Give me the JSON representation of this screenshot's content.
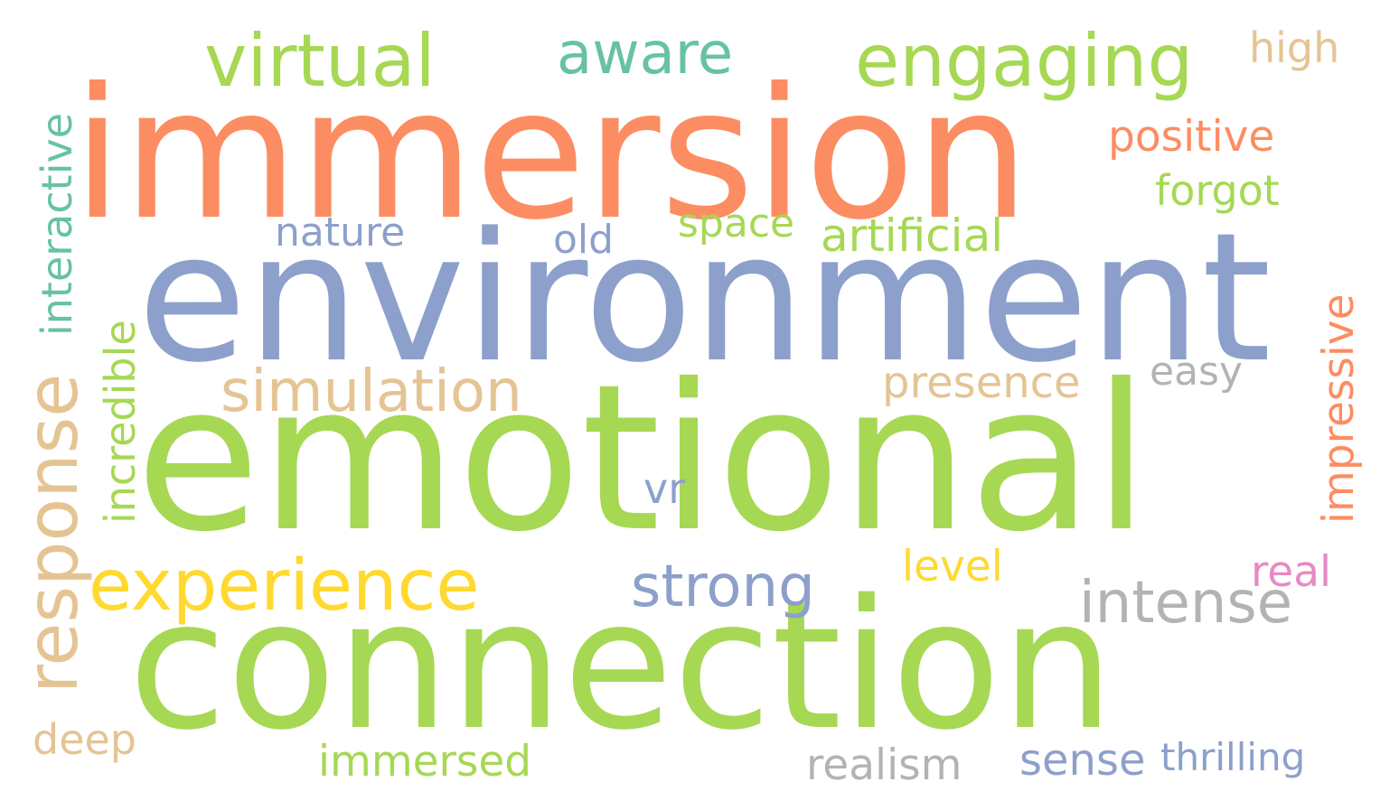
{
  "words": [
    {
      "text": "immersion",
      "color": "#fc8d62"
    },
    {
      "text": "environment",
      "color": "#8da0cb"
    },
    {
      "text": "emotional",
      "color": "#a6d854"
    },
    {
      "text": "connection",
      "color": "#a6d854"
    },
    {
      "text": "response",
      "color": "#e5c494"
    },
    {
      "text": "experience",
      "color": "#ffd92f"
    },
    {
      "text": "virtual",
      "color": "#a6d854"
    },
    {
      "text": "engaging",
      "color": "#a6d854"
    },
    {
      "text": "aware",
      "color": "#66c2a5"
    },
    {
      "text": "simulation",
      "color": "#e5c494"
    },
    {
      "text": "strong",
      "color": "#8da0cb"
    },
    {
      "text": "intense",
      "color": "#b3b3b3"
    },
    {
      "text": "interactive",
      "color": "#66c2a5"
    },
    {
      "text": "incredible",
      "color": "#a6d854"
    },
    {
      "text": "impressive",
      "color": "#fc8d62"
    },
    {
      "text": "high",
      "color": "#e5c494"
    },
    {
      "text": "positive",
      "color": "#fc8d62"
    },
    {
      "text": "forgot",
      "color": "#a6d854"
    },
    {
      "text": "nature",
      "color": "#8da0cb"
    },
    {
      "text": "old",
      "color": "#8da0cb"
    },
    {
      "text": "space",
      "color": "#a6d854"
    },
    {
      "text": "artificial",
      "color": "#a6d854"
    },
    {
      "text": "presence",
      "color": "#e5c494"
    },
    {
      "text": "easy",
      "color": "#b3b3b3"
    },
    {
      "text": "vr",
      "color": "#8da0cb"
    },
    {
      "text": "level",
      "color": "#ffd92f"
    },
    {
      "text": "real",
      "color": "#e78ac3"
    },
    {
      "text": "deep",
      "color": "#e5c494"
    },
    {
      "text": "immersed",
      "color": "#a6d854"
    },
    {
      "text": "realism",
      "color": "#b3b3b3"
    },
    {
      "text": "sense",
      "color": "#8da0cb"
    },
    {
      "text": "thrilling",
      "color": "#8da0cb"
    }
  ]
}
